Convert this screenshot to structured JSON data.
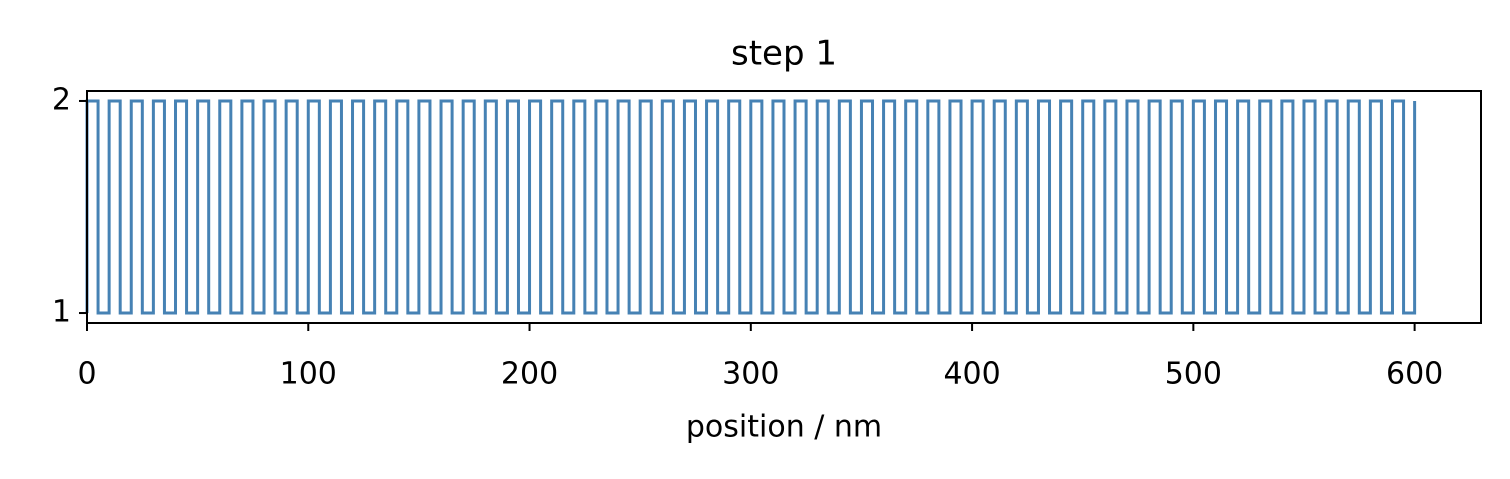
{
  "chart_data": {
    "type": "line",
    "title": "step 1",
    "x_label": "position / nm",
    "series": [
      {
        "color": "#4682b4",
        "x": [
          0,
          0,
          5,
          5,
          10,
          10,
          15,
          15,
          20,
          20,
          25,
          25,
          30,
          30,
          35,
          35,
          40,
          40,
          45,
          45,
          50,
          50,
          55,
          55,
          60,
          60,
          65,
          65,
          70,
          70,
          75,
          75,
          80,
          80,
          85,
          85,
          90,
          90,
          95,
          95,
          100,
          100,
          105,
          105,
          110,
          110,
          115,
          115,
          120,
          120,
          125,
          125,
          130,
          130,
          135,
          135,
          140,
          140,
          145,
          145,
          150,
          150,
          155,
          155,
          160,
          160,
          165,
          165,
          170,
          170,
          175,
          175,
          180,
          180,
          185,
          185,
          190,
          190,
          195,
          195,
          200,
          200,
          205,
          205,
          210,
          210,
          215,
          215,
          220,
          220,
          225,
          225,
          230,
          230,
          235,
          235,
          240,
          240,
          245,
          245,
          250,
          250,
          255,
          255,
          260,
          260,
          265,
          265,
          270,
          270,
          275,
          275,
          280,
          280,
          285,
          285,
          290,
          290,
          295,
          295,
          300,
          300,
          305,
          305,
          310,
          310,
          315,
          315,
          320,
          320,
          325,
          325,
          330,
          330,
          335,
          335,
          340,
          340,
          345,
          345,
          350,
          350,
          355,
          355,
          360,
          360,
          365,
          365,
          370,
          370,
          375,
          375,
          380,
          380,
          385,
          385,
          390,
          390,
          395,
          395,
          400,
          400,
          405,
          405,
          410,
          410,
          415,
          415,
          420,
          420,
          425,
          425,
          430,
          430,
          435,
          435,
          440,
          440,
          445,
          445,
          450,
          450,
          455,
          455,
          460,
          460,
          465,
          465,
          470,
          470,
          475,
          475,
          480,
          480,
          485,
          485,
          490,
          490,
          495,
          495,
          500,
          500,
          505,
          505,
          510,
          510,
          515,
          515,
          520,
          520,
          525,
          525,
          530,
          530,
          535,
          535,
          540,
          540,
          545,
          545,
          550,
          550,
          555,
          555,
          560,
          560,
          565,
          565,
          570,
          570,
          575,
          575,
          580,
          580,
          585,
          585,
          590,
          590,
          595,
          595,
          600,
          600
        ],
        "values": [
          1,
          2,
          2,
          1,
          1,
          2,
          2,
          1,
          1,
          2,
          2,
          1,
          1,
          2,
          2,
          1,
          1,
          2,
          2,
          1,
          1,
          2,
          2,
          1,
          1,
          2,
          2,
          1,
          1,
          2,
          2,
          1,
          1,
          2,
          2,
          1,
          1,
          2,
          2,
          1,
          1,
          2,
          2,
          1,
          1,
          2,
          2,
          1,
          1,
          2,
          2,
          1,
          1,
          2,
          2,
          1,
          1,
          2,
          2,
          1,
          1,
          2,
          2,
          1,
          1,
          2,
          2,
          1,
          1,
          2,
          2,
          1,
          1,
          2,
          2,
          1,
          1,
          2,
          2,
          1,
          1,
          2,
          2,
          1,
          1,
          2,
          2,
          1,
          1,
          2,
          2,
          1,
          1,
          2,
          2,
          1,
          1,
          2,
          2,
          1,
          1,
          2,
          2,
          1,
          1,
          2,
          2,
          1,
          1,
          2,
          2,
          1,
          1,
          2,
          2,
          1,
          1,
          2,
          2,
          1,
          1,
          2,
          2,
          1,
          1,
          2,
          2,
          1,
          1,
          2,
          2,
          1,
          1,
          2,
          2,
          1,
          1,
          2,
          2,
          1,
          1,
          2,
          2,
          1,
          1,
          2,
          2,
          1,
          1,
          2,
          2,
          1,
          1,
          2,
          2,
          1,
          1,
          2,
          2,
          1,
          1,
          2,
          2,
          1,
          1,
          2,
          2,
          1,
          1,
          2,
          2,
          1,
          1,
          2,
          2,
          1,
          1,
          2,
          2,
          1,
          1,
          2,
          2,
          1,
          1,
          2,
          2,
          1,
          1,
          2,
          2,
          1,
          1,
          2,
          2,
          1,
          1,
          2,
          2,
          1,
          1,
          2,
          2,
          1,
          1,
          2,
          2,
          1,
          1,
          2,
          2,
          1,
          1,
          2,
          2,
          1,
          1,
          2,
          2,
          1,
          1,
          2,
          2,
          1,
          1,
          2,
          2,
          1,
          1,
          2,
          2,
          1,
          1,
          2,
          2,
          1,
          1,
          2,
          2,
          1,
          1,
          2
        ]
      }
    ],
    "xlim": [
      0,
      630
    ],
    "xticks": [
      0,
      100,
      200,
      300,
      400,
      500,
      600
    ],
    "ylim": [
      0.953,
      2.047
    ],
    "yticks": [
      1,
      2
    ]
  }
}
